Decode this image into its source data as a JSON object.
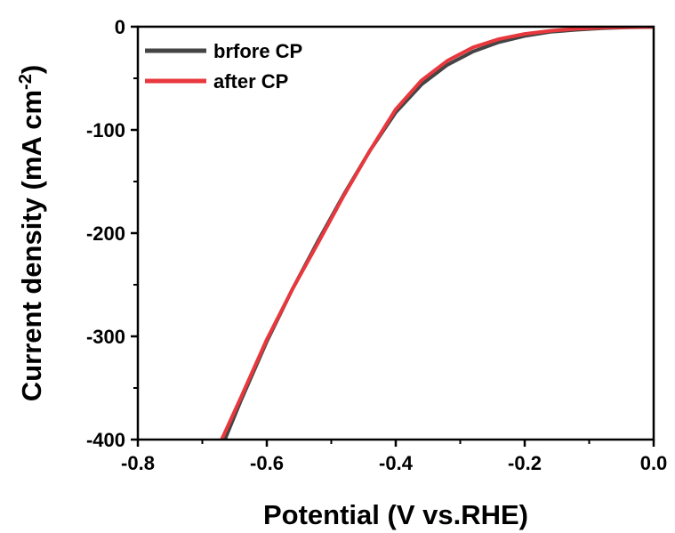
{
  "chart_data": {
    "type": "line",
    "title": "",
    "xlabel": "Potential (V vs.RHE)",
    "ylabel_main": "Current density (mA cm",
    "ylabel_sup": "-2",
    "ylabel_close": ")",
    "xlim": [
      -0.8,
      0.0
    ],
    "ylim": [
      -400,
      0
    ],
    "xticks": [
      -0.8,
      -0.6,
      -0.4,
      -0.2,
      0.0
    ],
    "xtick_labels": [
      "-0.8",
      "-0.6",
      "-0.4",
      "-0.2",
      "0.0"
    ],
    "yticks": [
      0,
      -100,
      -200,
      -300,
      -400
    ],
    "ytick_labels": [
      "0",
      "-100",
      "-200",
      "-300",
      "-400"
    ],
    "grid": false,
    "legend_position": "top-left",
    "series": [
      {
        "name": "brfore CP",
        "color": "#444444",
        "x": [
          -0.665,
          -0.64,
          -0.6,
          -0.56,
          -0.52,
          -0.48,
          -0.44,
          -0.4,
          -0.36,
          -0.32,
          -0.28,
          -0.24,
          -0.2,
          -0.16,
          -0.12,
          -0.08,
          -0.04,
          0.0
        ],
        "y": [
          -400,
          -362,
          -305,
          -254,
          -207,
          -162,
          -120,
          -83,
          -56,
          -37,
          -24,
          -15,
          -9,
          -5,
          -3,
          -1.5,
          -0.7,
          -0.3
        ]
      },
      {
        "name": "after CP",
        "color": "#e8383d",
        "x": [
          -0.67,
          -0.64,
          -0.6,
          -0.56,
          -0.52,
          -0.48,
          -0.44,
          -0.4,
          -0.36,
          -0.32,
          -0.28,
          -0.24,
          -0.2,
          -0.16,
          -0.12,
          -0.08,
          -0.04,
          0.0
        ],
        "y": [
          -400,
          -359,
          -303,
          -254,
          -209,
          -163,
          -120,
          -80,
          -52,
          -33,
          -20,
          -12,
          -7,
          -4,
          -2,
          -1,
          -0.5,
          -0.2
        ]
      }
    ]
  }
}
